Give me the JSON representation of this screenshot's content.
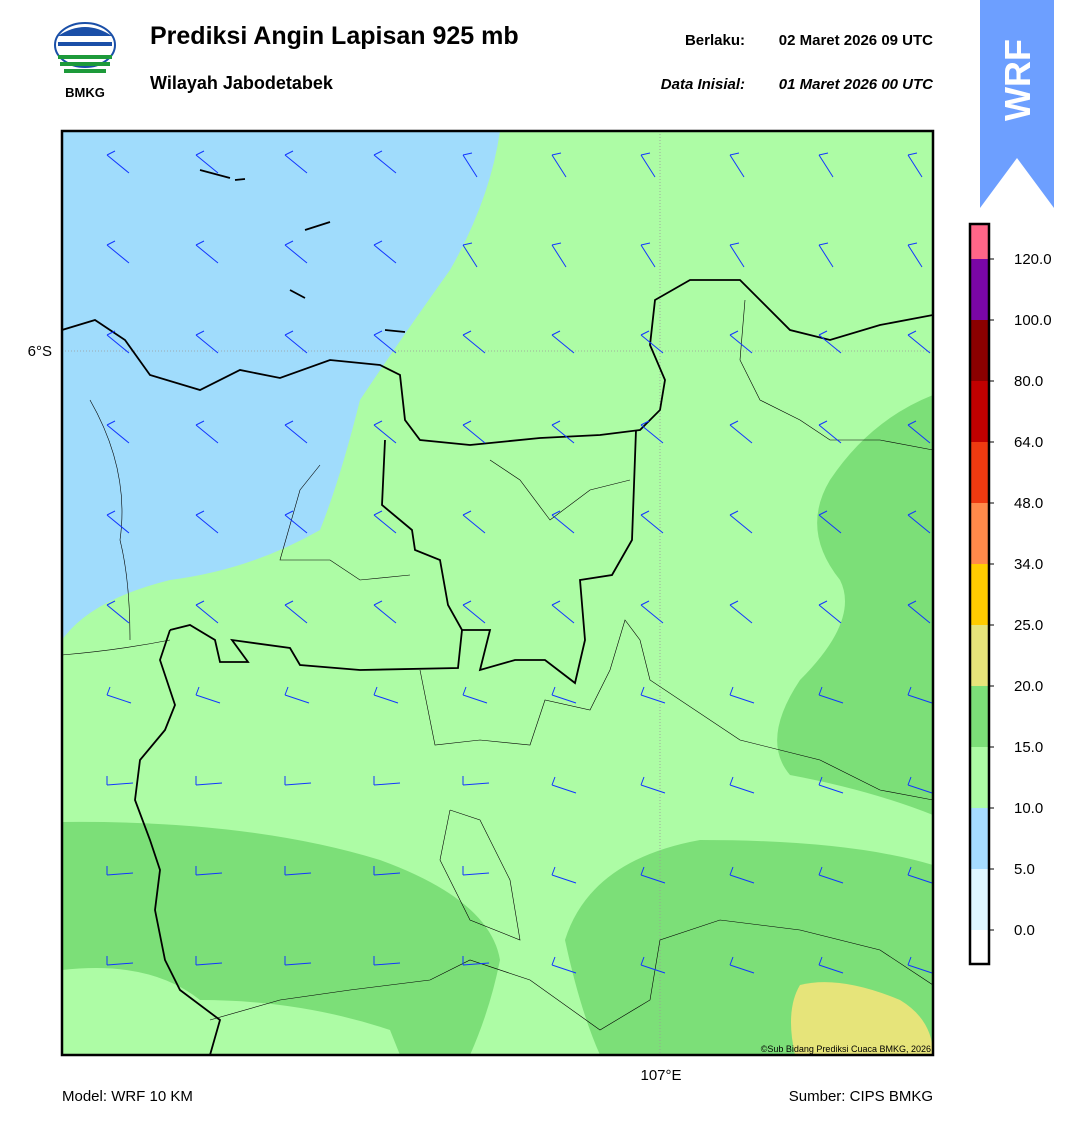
{
  "header": {
    "logo_text": "BMKG",
    "title": "Prediksi Angin Lapisan 925 mb",
    "subtitle": "Wilayah Jabodetabek",
    "valid_label": "Berlaku:",
    "valid_time": "02 Maret 2026 09 UTC",
    "init_label": "Data Inisial:",
    "init_time": "01 Maret 2026 00 UTC",
    "badge": "WRF"
  },
  "map": {
    "lat_label": "6°S",
    "lon_label": "107°E",
    "copyright": "©Sub Bidang Prediksi Cuaca BMKG, 2026"
  },
  "colorbar": {
    "labels": [
      "0.0",
      "5.0",
      "10.0",
      "15.0",
      "20.0",
      "25.0",
      "34.0",
      "48.0",
      "64.0",
      "80.0",
      "100.0",
      "120.0"
    ],
    "colors": [
      "#ffffff",
      "#dff6ff",
      "#a6dcff",
      "#adfca5",
      "#7cdf78",
      "#e6e47a",
      "#ffcc00",
      "#ff8a4a",
      "#ee3a10",
      "#c00000",
      "#8b0000",
      "#7a06a6",
      "#ff6688"
    ]
  },
  "footer": {
    "model": "Model: WRF 10 KM",
    "source": "Sumber: CIPS BMKG"
  }
}
